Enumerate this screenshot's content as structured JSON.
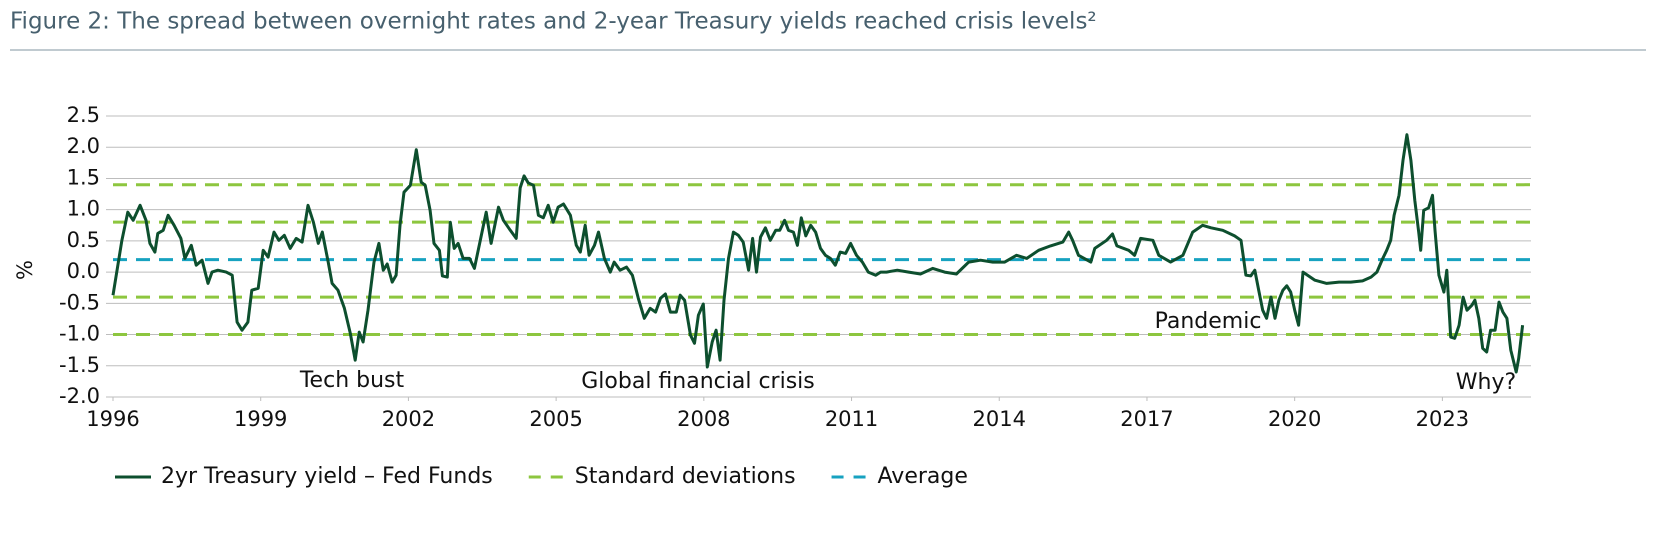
{
  "chart_data": {
    "type": "line",
    "title": "Figure 2: The spread between overnight rates and 2-year Treasury yields reached crisis levels²",
    "y_label": "%",
    "annotations": [
      "Tech bust",
      "Global financial crisis",
      "Pandemic",
      "Why?"
    ],
    "xlim": [
      1996,
      2024.8
    ],
    "xticks": [
      1996,
      1999,
      2002,
      2005,
      2008,
      2011,
      2014,
      2017,
      2020,
      2023
    ],
    "ylim": [
      -2,
      2.5
    ],
    "yticks": [
      2.5,
      {
        "value": 2,
        "label": "2.0"
      },
      1.5,
      {
        "value": 1,
        "label": "1.0"
      },
      0.5,
      {
        "value": 0,
        "label": "0.0"
      },
      -0.5,
      {
        "value": -1,
        "label": "-1.0"
      },
      -1.5,
      {
        "value": -2,
        "label": "-2.0"
      }
    ],
    "grid": true,
    "x": [
      1996.0,
      1996.18,
      1996.3,
      1996.41,
      1996.55,
      1996.67,
      1996.75,
      1996.85,
      1996.91,
      1997.02,
      1997.12,
      1997.24,
      1997.38,
      1997.46,
      1997.59,
      1997.69,
      1997.81,
      1997.93,
      1998.01,
      1998.13,
      1998.3,
      1998.42,
      1998.52,
      1998.62,
      1998.74,
      1998.82,
      1998.95,
      1999.05,
      1999.15,
      1999.27,
      1999.37,
      1999.48,
      1999.6,
      1999.72,
      1999.84,
      1999.96,
      2000.07,
      2000.17,
      2000.25,
      2000.37,
      2000.45,
      2000.57,
      2000.7,
      2000.82,
      2000.92,
      2001.0,
      2001.08,
      2001.18,
      2001.3,
      2001.4,
      2001.49,
      2001.57,
      2001.67,
      2001.75,
      2001.83,
      2001.91,
      2002.04,
      2002.16,
      2002.26,
      2002.34,
      2002.44,
      2002.52,
      2002.63,
      2002.69,
      2002.79,
      2002.85,
      2002.93,
      2003.01,
      2003.11,
      2003.24,
      2003.34,
      2003.46,
      2003.58,
      2003.68,
      2003.83,
      2003.93,
      2004.07,
      2004.19,
      2004.27,
      2004.35,
      2004.43,
      2004.54,
      2004.64,
      2004.74,
      2004.84,
      2004.94,
      2005.04,
      2005.15,
      2005.29,
      2005.41,
      2005.49,
      2005.59,
      2005.67,
      2005.78,
      2005.86,
      2005.98,
      2006.1,
      2006.18,
      2006.3,
      2006.43,
      2006.55,
      2006.67,
      2006.79,
      2006.91,
      2007.02,
      2007.12,
      2007.22,
      2007.32,
      2007.44,
      2007.52,
      2007.61,
      2007.73,
      2007.81,
      2007.89,
      2007.99,
      2008.07,
      2008.17,
      2008.25,
      2008.33,
      2008.41,
      2008.5,
      2008.6,
      2008.7,
      2008.8,
      2008.91,
      2008.99,
      2009.07,
      2009.15,
      2009.25,
      2009.35,
      2009.46,
      2009.54,
      2009.64,
      2009.72,
      2009.82,
      2009.9,
      2009.98,
      2010.07,
      2010.17,
      2010.27,
      2010.37,
      2010.47,
      2010.57,
      2010.67,
      2010.77,
      2010.88,
      2010.98,
      2011.1,
      2011.22,
      2011.34,
      2011.49,
      2011.59,
      2011.71,
      2011.93,
      2012.16,
      2012.4,
      2012.65,
      2012.89,
      2013.13,
      2013.38,
      2013.62,
      2013.87,
      2014.11,
      2014.35,
      2014.56,
      2014.8,
      2015.04,
      2015.29,
      2015.41,
      2015.49,
      2015.61,
      2015.86,
      2015.94,
      2016.18,
      2016.3,
      2016.39,
      2016.63,
      2016.75,
      2016.87,
      2017.12,
      2017.24,
      2017.48,
      2017.73,
      2017.93,
      2018.13,
      2018.3,
      2018.54,
      2018.78,
      2018.91,
      2019.01,
      2019.11,
      2019.19,
      2019.27,
      2019.35,
      2019.43,
      2019.52,
      2019.6,
      2019.68,
      2019.76,
      2019.84,
      2019.92,
      2020.0,
      2020.08,
      2020.17,
      2020.41,
      2020.65,
      2020.9,
      2021.14,
      2021.38,
      2021.55,
      2021.67,
      2021.79,
      2021.87,
      2021.95,
      2022.02,
      2022.12,
      2022.2,
      2022.28,
      2022.36,
      2022.44,
      2022.52,
      2022.56,
      2022.62,
      2022.72,
      2022.8,
      2022.85,
      2022.93,
      2023.03,
      2023.09,
      2023.17,
      2023.25,
      2023.34,
      2023.42,
      2023.5,
      2023.6,
      2023.66,
      2023.74,
      2023.82,
      2023.9,
      2023.98,
      2024.07,
      2024.15,
      2024.23,
      2024.31,
      2024.39,
      2024.5,
      2024.55,
      2024.63
    ],
    "series": [
      {
        "name": "2yr Treasury yield – Fed Funds",
        "color": "#0d4f2e",
        "values": [
          -0.37,
          0.51,
          0.96,
          0.83,
          1.07,
          0.83,
          0.46,
          0.32,
          0.62,
          0.67,
          0.91,
          0.75,
          0.54,
          0.22,
          0.43,
          0.11,
          0.19,
          -0.18,
          0.0,
          0.03,
          0.0,
          -0.05,
          -0.8,
          -0.93,
          -0.8,
          -0.29,
          -0.26,
          0.35,
          0.24,
          0.64,
          0.51,
          0.59,
          0.38,
          0.54,
          0.48,
          1.07,
          0.8,
          0.46,
          0.64,
          0.16,
          -0.18,
          -0.29,
          -0.58,
          -0.98,
          -1.41,
          -0.96,
          -1.12,
          -0.61,
          0.16,
          0.46,
          0.03,
          0.13,
          -0.16,
          -0.05,
          0.75,
          1.28,
          1.39,
          1.96,
          1.44,
          1.39,
          0.99,
          0.46,
          0.35,
          -0.06,
          -0.08,
          0.8,
          0.38,
          0.46,
          0.22,
          0.22,
          0.06,
          0.51,
          0.96,
          0.46,
          1.04,
          0.83,
          0.67,
          0.54,
          1.35,
          1.54,
          1.43,
          1.39,
          0.91,
          0.87,
          1.07,
          0.8,
          1.04,
          1.09,
          0.91,
          0.43,
          0.32,
          0.75,
          0.27,
          0.43,
          0.64,
          0.22,
          0.0,
          0.16,
          0.03,
          0.08,
          -0.05,
          -0.42,
          -0.74,
          -0.58,
          -0.64,
          -0.42,
          -0.35,
          -0.64,
          -0.64,
          -0.37,
          -0.45,
          -1.01,
          -1.14,
          -0.69,
          -0.51,
          -1.52,
          -1.12,
          -0.93,
          -1.41,
          -0.45,
          0.22,
          0.64,
          0.59,
          0.48,
          0.03,
          0.54,
          0.0,
          0.56,
          0.71,
          0.51,
          0.67,
          0.67,
          0.83,
          0.67,
          0.64,
          0.43,
          0.87,
          0.58,
          0.75,
          0.64,
          0.38,
          0.27,
          0.22,
          0.11,
          0.32,
          0.3,
          0.46,
          0.27,
          0.16,
          0.0,
          -0.05,
          0.0,
          0.0,
          0.03,
          0.0,
          -0.03,
          0.06,
          0.0,
          -0.03,
          0.16,
          0.19,
          0.16,
          0.16,
          0.27,
          0.22,
          0.35,
          0.42,
          0.48,
          0.64,
          0.51,
          0.27,
          0.16,
          0.38,
          0.51,
          0.61,
          0.42,
          0.35,
          0.27,
          0.54,
          0.51,
          0.27,
          0.16,
          0.27,
          0.64,
          0.75,
          0.71,
          0.67,
          0.58,
          0.51,
          -0.05,
          -0.06,
          0.03,
          -0.29,
          -0.61,
          -0.74,
          -0.4,
          -0.74,
          -0.45,
          -0.29,
          -0.22,
          -0.32,
          -0.61,
          -0.85,
          0.0,
          -0.13,
          -0.18,
          -0.16,
          -0.16,
          -0.14,
          -0.08,
          0.0,
          0.22,
          0.35,
          0.51,
          0.91,
          1.23,
          1.79,
          2.2,
          1.79,
          1.15,
          0.64,
          0.35,
          0.99,
          1.03,
          1.23,
          0.67,
          -0.05,
          -0.32,
          0.03,
          -1.04,
          -1.06,
          -0.85,
          -0.4,
          -0.61,
          -0.53,
          -0.45,
          -0.74,
          -1.22,
          -1.28,
          -0.93,
          -0.93,
          -0.48,
          -0.64,
          -0.74,
          -1.25,
          -1.6,
          -1.38,
          -0.85
        ]
      }
    ],
    "reference_lines": [
      {
        "name": "Standard deviations",
        "color": "#8dc63f",
        "values": [
          1.4,
          0.8,
          -0.4,
          -1.0
        ]
      },
      {
        "name": "Average",
        "color": "#17a2c0",
        "values": [
          0.2
        ]
      }
    ]
  }
}
